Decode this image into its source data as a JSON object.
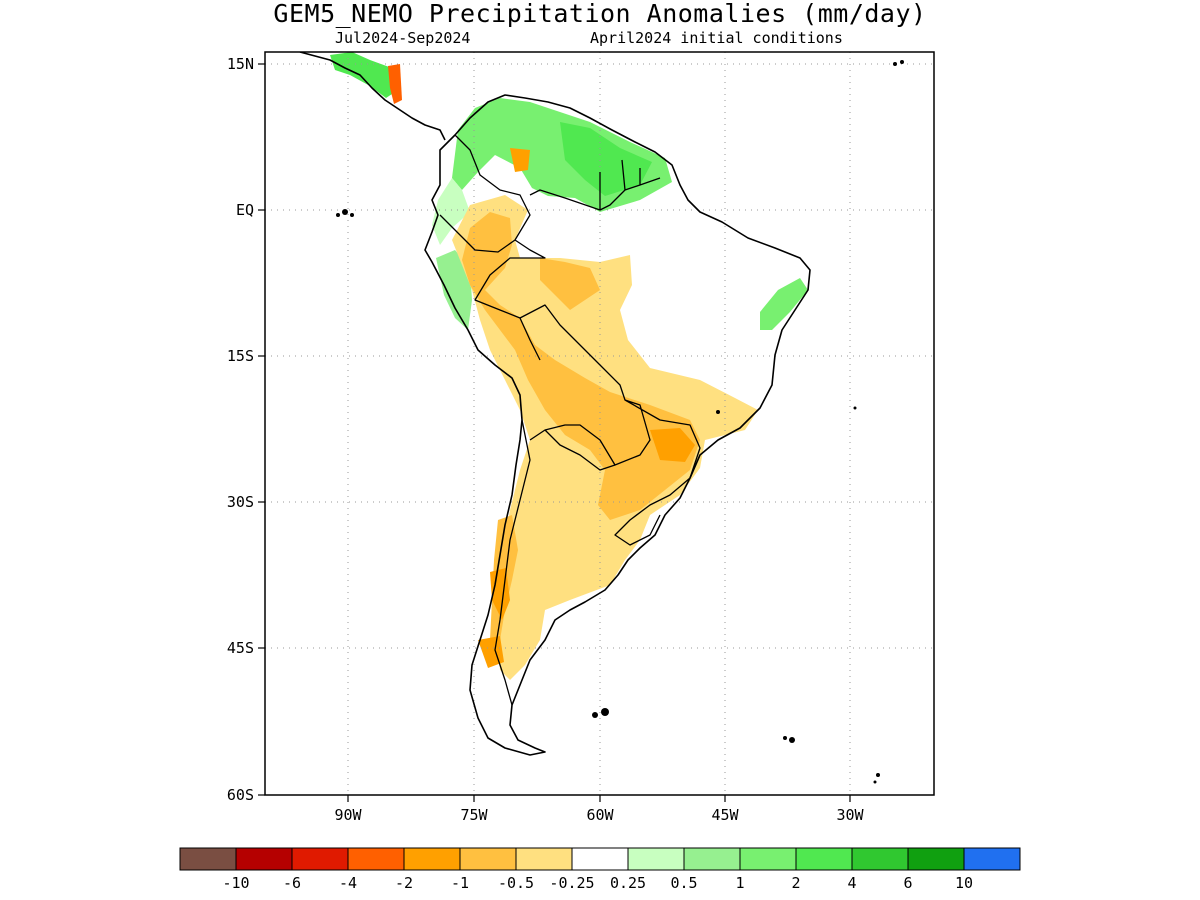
{
  "header": {
    "title": "GEM5_NEMO Precipitation Anomalies (mm/day)",
    "period": "Jul2024-Sep2024",
    "init": "April2024 initial conditions"
  },
  "map": {
    "lat_labels": [
      "15N",
      "EQ",
      "15S",
      "30S",
      "45S",
      "60S"
    ],
    "lon_labels": [
      "90W",
      "75W",
      "60W",
      "45W",
      "30W"
    ],
    "lat_range": [
      -60,
      15
    ],
    "lon_range": [
      -100,
      -20
    ],
    "grid": "dotted"
  },
  "legend": {
    "labels": [
      "-10",
      "-6",
      "-4",
      "-2",
      "-1",
      "-0.5",
      "-0.25",
      "0.25",
      "0.5",
      "1",
      "2",
      "4",
      "6",
      "10"
    ],
    "colors": [
      "#7a4e42",
      "#b50000",
      "#e01a00",
      "#ff6000",
      "#ffa000",
      "#ffc040",
      "#ffe080",
      "#ffffff",
      "#c8ffc0",
      "#96f090",
      "#78f070",
      "#50e850",
      "#30c830",
      "#10a010",
      "#2070f0"
    ]
  }
}
